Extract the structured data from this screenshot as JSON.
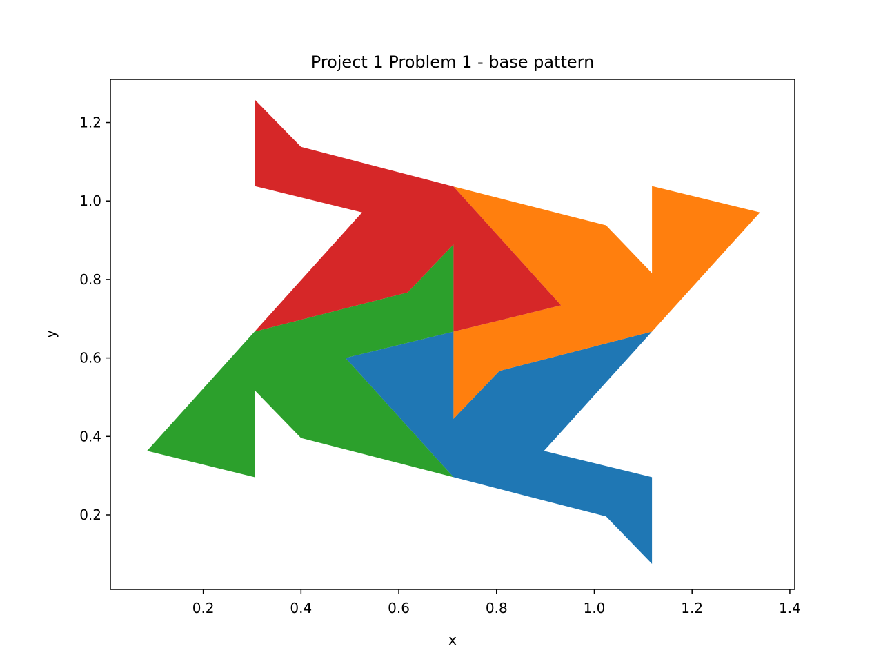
{
  "chart_data": {
    "type": "polygon",
    "title": "Project 1 Problem 1 - base pattern",
    "xlabel": "x",
    "ylabel": "y",
    "xlim": [
      0.01,
      1.41
    ],
    "ylim": [
      0.01,
      1.31
    ],
    "xticks": [
      0.2,
      0.4,
      0.6,
      0.8,
      1.0,
      1.2,
      1.4
    ],
    "xtick_labels": [
      "0.2",
      "0.4",
      "0.6",
      "0.8",
      "1.0",
      "1.2",
      "1.4"
    ],
    "yticks": [
      0.2,
      0.4,
      0.6,
      0.8,
      1.0,
      1.2
    ],
    "ytick_labels": [
      "0.2",
      "0.4",
      "0.6",
      "0.8",
      "1.0",
      "1.2"
    ],
    "grid": false,
    "series": [
      {
        "name": "blue",
        "color": "#1f77b4",
        "points": [
          [
            0.712,
            0.667
          ],
          [
            0.712,
            0.445
          ],
          [
            0.806,
            0.567
          ],
          [
            1.118,
            0.667
          ],
          [
            0.897,
            0.363
          ],
          [
            1.118,
            0.296
          ],
          [
            1.118,
            0.075
          ],
          [
            1.024,
            0.196
          ],
          [
            0.712,
            0.296
          ],
          [
            0.491,
            0.6
          ]
        ]
      },
      {
        "name": "orange",
        "color": "#ff7f0e",
        "points": [
          [
            0.712,
            1.037
          ],
          [
            0.932,
            0.734
          ],
          [
            0.712,
            0.667
          ],
          [
            0.712,
            0.445
          ],
          [
            0.806,
            0.567
          ],
          [
            1.118,
            0.667
          ],
          [
            1.339,
            0.971
          ],
          [
            1.118,
            1.038
          ],
          [
            1.118,
            0.816
          ],
          [
            1.024,
            0.938
          ]
        ]
      },
      {
        "name": "green",
        "color": "#2ca02c",
        "points": [
          [
            0.712,
            0.296
          ],
          [
            0.4,
            0.396
          ],
          [
            0.305,
            0.518
          ],
          [
            0.305,
            0.296
          ],
          [
            0.085,
            0.363
          ],
          [
            0.305,
            0.667
          ],
          [
            0.618,
            0.767
          ],
          [
            0.712,
            0.889
          ],
          [
            0.712,
            0.667
          ],
          [
            0.491,
            0.6
          ]
        ]
      },
      {
        "name": "red",
        "color": "#d62728",
        "points": [
          [
            0.712,
            1.037
          ],
          [
            0.932,
            0.734
          ],
          [
            0.712,
            0.667
          ],
          [
            0.712,
            0.889
          ],
          [
            0.618,
            0.767
          ],
          [
            0.305,
            0.667
          ],
          [
            0.525,
            0.971
          ],
          [
            0.305,
            1.038
          ],
          [
            0.305,
            1.259
          ],
          [
            0.4,
            1.138
          ]
        ]
      }
    ]
  }
}
